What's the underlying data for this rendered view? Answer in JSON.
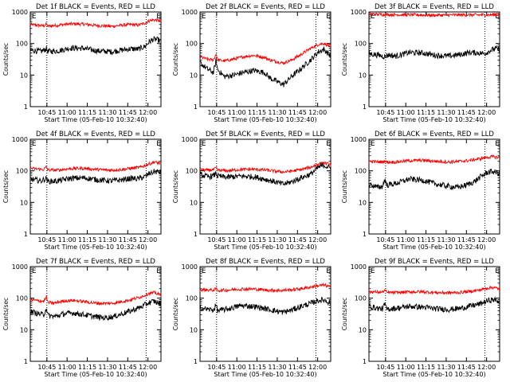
{
  "chart_data": {
    "type": "line",
    "time_ticks": [
      "10:45",
      "11:00",
      "11:15",
      "11:30",
      "11:45",
      "12:00"
    ],
    "y_ticks": [
      "1",
      "10",
      "100",
      "1000"
    ],
    "y_scale": "log",
    "ylim": [
      1,
      1000
    ],
    "ylabel": "Counts/sec",
    "xlabel": "Start Time (05-Feb-10 10:32:40)",
    "x_unit": "minutes after 10:32:40",
    "xlim": [
      0,
      97
    ],
    "marker_label": "E",
    "marker_x": [
      0.5,
      93
    ],
    "dotted_x": [
      12.3,
      86
    ],
    "colors": {
      "events": "#000000",
      "lld": "#ff0000"
    },
    "panels": [
      {
        "title": "Det 1f BLACK = Events, RED = LLD",
        "events": [
          [
            0,
            62
          ],
          [
            8,
            56
          ],
          [
            12,
            68
          ],
          [
            13,
            56
          ],
          [
            20,
            58
          ],
          [
            30,
            72
          ],
          [
            40,
            70
          ],
          [
            50,
            58
          ],
          [
            60,
            55
          ],
          [
            68,
            62
          ],
          [
            75,
            68
          ],
          [
            80,
            66
          ],
          [
            85,
            80
          ],
          [
            88,
            110
          ],
          [
            91,
            135
          ],
          [
            95,
            130
          ],
          [
            97,
            115
          ]
        ],
        "lld": [
          [
            0,
            400
          ],
          [
            10,
            360
          ],
          [
            12,
            410
          ],
          [
            13,
            350
          ],
          [
            20,
            380
          ],
          [
            30,
            420
          ],
          [
            40,
            410
          ],
          [
            50,
            370
          ],
          [
            60,
            350
          ],
          [
            68,
            380
          ],
          [
            75,
            400
          ],
          [
            80,
            380
          ],
          [
            85,
            440
          ],
          [
            88,
            520
          ],
          [
            91,
            560
          ],
          [
            95,
            540
          ],
          [
            97,
            480
          ]
        ]
      },
      {
        "title": "Det 2f BLACK = Events, RED = LLD",
        "events": [
          [
            0,
            25
          ],
          [
            5,
            16
          ],
          [
            10,
            12
          ],
          [
            12,
            30
          ],
          [
            13,
            15
          ],
          [
            18,
            9
          ],
          [
            25,
            10
          ],
          [
            32,
            12
          ],
          [
            40,
            14
          ],
          [
            48,
            12
          ],
          [
            52,
            8
          ],
          [
            58,
            6
          ],
          [
            62,
            5
          ],
          [
            68,
            9
          ],
          [
            75,
            16
          ],
          [
            82,
            30
          ],
          [
            88,
            55
          ],
          [
            92,
            65
          ],
          [
            97,
            40
          ]
        ],
        "lld": [
          [
            0,
            38
          ],
          [
            5,
            32
          ],
          [
            10,
            30
          ],
          [
            12,
            48
          ],
          [
            13,
            30
          ],
          [
            18,
            28
          ],
          [
            25,
            32
          ],
          [
            32,
            38
          ],
          [
            40,
            42
          ],
          [
            48,
            36
          ],
          [
            52,
            30
          ],
          [
            58,
            26
          ],
          [
            62,
            24
          ],
          [
            68,
            30
          ],
          [
            75,
            45
          ],
          [
            82,
            70
          ],
          [
            88,
            95
          ],
          [
            92,
            100
          ],
          [
            97,
            80
          ]
        ]
      },
      {
        "title": "Det 3f BLACK = Events, RED = LLD",
        "events": [
          [
            0,
            48
          ],
          [
            8,
            42
          ],
          [
            12,
            38
          ],
          [
            14,
            44
          ],
          [
            20,
            40
          ],
          [
            30,
            52
          ],
          [
            40,
            50
          ],
          [
            50,
            42
          ],
          [
            60,
            40
          ],
          [
            68,
            45
          ],
          [
            75,
            52
          ],
          [
            82,
            50
          ],
          [
            86,
            48
          ],
          [
            90,
            60
          ],
          [
            94,
            70
          ],
          [
            97,
            62
          ]
        ],
        "lld": [
          [
            0,
            850
          ],
          [
            15,
            820
          ],
          [
            30,
            810
          ],
          [
            45,
            790
          ],
          [
            60,
            800
          ],
          [
            75,
            810
          ],
          [
            85,
            800
          ],
          [
            97,
            830
          ]
        ]
      },
      {
        "title": "Det 4f BLACK = Events, RED = LLD",
        "events": [
          [
            0,
            55
          ],
          [
            8,
            48
          ],
          [
            12,
            58
          ],
          [
            13,
            46
          ],
          [
            20,
            48
          ],
          [
            30,
            58
          ],
          [
            40,
            60
          ],
          [
            50,
            52
          ],
          [
            60,
            48
          ],
          [
            68,
            52
          ],
          [
            75,
            58
          ],
          [
            80,
            56
          ],
          [
            85,
            65
          ],
          [
            88,
            80
          ],
          [
            92,
            95
          ],
          [
            97,
            90
          ]
        ],
        "lld": [
          [
            0,
            120
          ],
          [
            10,
            110
          ],
          [
            12,
            135
          ],
          [
            13,
            108
          ],
          [
            20,
            105
          ],
          [
            30,
            118
          ],
          [
            40,
            120
          ],
          [
            50,
            110
          ],
          [
            60,
            105
          ],
          [
            68,
            110
          ],
          [
            75,
            120
          ],
          [
            82,
            130
          ],
          [
            88,
            165
          ],
          [
            92,
            190
          ],
          [
            97,
            170
          ]
        ]
      },
      {
        "title": "Det 5f BLACK = Events, RED = LLD",
        "events": [
          [
            0,
            75
          ],
          [
            6,
            65
          ],
          [
            10,
            70
          ],
          [
            12,
            85
          ],
          [
            13,
            68
          ],
          [
            20,
            62
          ],
          [
            30,
            68
          ],
          [
            40,
            65
          ],
          [
            50,
            52
          ],
          [
            58,
            42
          ],
          [
            62,
            38
          ],
          [
            68,
            45
          ],
          [
            75,
            60
          ],
          [
            82,
            78
          ],
          [
            88,
            130
          ],
          [
            92,
            150
          ],
          [
            97,
            120
          ]
        ],
        "lld": [
          [
            0,
            110
          ],
          [
            6,
            105
          ],
          [
            10,
            108
          ],
          [
            12,
            125
          ],
          [
            13,
            105
          ],
          [
            20,
            100
          ],
          [
            30,
            110
          ],
          [
            40,
            112
          ],
          [
            50,
            105
          ],
          [
            58,
            95
          ],
          [
            62,
            92
          ],
          [
            68,
            98
          ],
          [
            75,
            110
          ],
          [
            82,
            130
          ],
          [
            88,
            165
          ],
          [
            92,
            180
          ],
          [
            97,
            155
          ]
        ]
      },
      {
        "title": "Det 6f BLACK = Events, RED = LLD",
        "events": [
          [
            0,
            38
          ],
          [
            6,
            30
          ],
          [
            10,
            32
          ],
          [
            12,
            55
          ],
          [
            13,
            35
          ],
          [
            20,
            40
          ],
          [
            30,
            55
          ],
          [
            40,
            50
          ],
          [
            50,
            38
          ],
          [
            60,
            32
          ],
          [
            66,
            30
          ],
          [
            72,
            35
          ],
          [
            78,
            45
          ],
          [
            84,
            70
          ],
          [
            88,
            90
          ],
          [
            92,
            95
          ],
          [
            97,
            80
          ]
        ],
        "lld": [
          [
            0,
            200
          ],
          [
            10,
            190
          ],
          [
            12,
            210
          ],
          [
            13,
            188
          ],
          [
            20,
            190
          ],
          [
            30,
            210
          ],
          [
            40,
            215
          ],
          [
            50,
            200
          ],
          [
            60,
            190
          ],
          [
            68,
            200
          ],
          [
            75,
            215
          ],
          [
            82,
            240
          ],
          [
            88,
            270
          ],
          [
            92,
            280
          ],
          [
            97,
            260
          ]
        ]
      },
      {
        "title": "Det 7f BLACK = Events, RED = LLD",
        "events": [
          [
            0,
            38
          ],
          [
            6,
            32
          ],
          [
            10,
            30
          ],
          [
            12,
            50
          ],
          [
            13,
            28
          ],
          [
            18,
            26
          ],
          [
            25,
            32
          ],
          [
            32,
            34
          ],
          [
            40,
            30
          ],
          [
            48,
            26
          ],
          [
            55,
            24
          ],
          [
            62,
            26
          ],
          [
            68,
            32
          ],
          [
            75,
            40
          ],
          [
            82,
            52
          ],
          [
            88,
            72
          ],
          [
            92,
            80
          ],
          [
            97,
            65
          ]
        ],
        "lld": [
          [
            0,
            90
          ],
          [
            6,
            82
          ],
          [
            10,
            80
          ],
          [
            12,
            110
          ],
          [
            13,
            72
          ],
          [
            18,
            70
          ],
          [
            25,
            82
          ],
          [
            32,
            85
          ],
          [
            40,
            78
          ],
          [
            48,
            70
          ],
          [
            55,
            68
          ],
          [
            62,
            70
          ],
          [
            68,
            78
          ],
          [
            75,
            90
          ],
          [
            82,
            110
          ],
          [
            88,
            140
          ],
          [
            92,
            150
          ],
          [
            97,
            125
          ]
        ]
      },
      {
        "title": "Det 8f BLACK = Events, RED = LLD",
        "events": [
          [
            0,
            50
          ],
          [
            6,
            44
          ],
          [
            10,
            42
          ],
          [
            12,
            62
          ],
          [
            13,
            40
          ],
          [
            20,
            45
          ],
          [
            30,
            58
          ],
          [
            40,
            55
          ],
          [
            50,
            45
          ],
          [
            58,
            38
          ],
          [
            62,
            36
          ],
          [
            68,
            42
          ],
          [
            75,
            55
          ],
          [
            82,
            68
          ],
          [
            88,
            85
          ],
          [
            92,
            88
          ],
          [
            97,
            70
          ]
        ],
        "lld": [
          [
            0,
            185
          ],
          [
            10,
            180
          ],
          [
            12,
            200
          ],
          [
            13,
            175
          ],
          [
            20,
            180
          ],
          [
            30,
            195
          ],
          [
            40,
            195
          ],
          [
            50,
            180
          ],
          [
            60,
            175
          ],
          [
            68,
            185
          ],
          [
            75,
            200
          ],
          [
            82,
            225
          ],
          [
            88,
            250
          ],
          [
            92,
            260
          ],
          [
            97,
            230
          ]
        ]
      },
      {
        "title": "Det 9f BLACK = Events, RED = LLD",
        "events": [
          [
            0,
            55
          ],
          [
            6,
            48
          ],
          [
            10,
            46
          ],
          [
            12,
            65
          ],
          [
            13,
            45
          ],
          [
            20,
            48
          ],
          [
            30,
            55
          ],
          [
            40,
            52
          ],
          [
            50,
            46
          ],
          [
            60,
            44
          ],
          [
            68,
            48
          ],
          [
            75,
            56
          ],
          [
            82,
            65
          ],
          [
            88,
            82
          ],
          [
            92,
            90
          ],
          [
            97,
            78
          ]
        ],
        "lld": [
          [
            0,
            160
          ],
          [
            10,
            155
          ],
          [
            12,
            180
          ],
          [
            13,
            152
          ],
          [
            20,
            150
          ],
          [
            30,
            158
          ],
          [
            40,
            160
          ],
          [
            50,
            150
          ],
          [
            60,
            148
          ],
          [
            68,
            152
          ],
          [
            75,
            165
          ],
          [
            82,
            180
          ],
          [
            88,
            210
          ],
          [
            92,
            220
          ],
          [
            97,
            195
          ]
        ]
      }
    ]
  }
}
